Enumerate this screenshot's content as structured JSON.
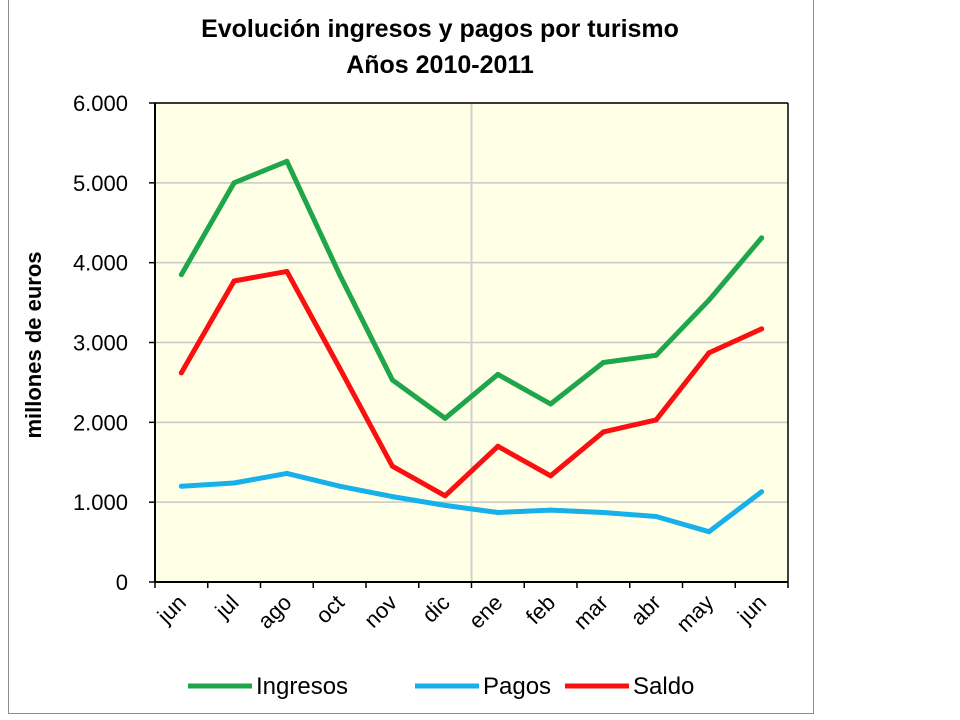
{
  "chart_data": {
    "type": "line",
    "title": "Evolución ingresos  y pagos por turismo",
    "subtitle": "Años 2010-2011",
    "ylabel": "millones de euros",
    "xlabel": "",
    "categories": [
      "jun",
      "jul",
      "ago",
      "oct",
      "nov",
      "dic",
      "ene",
      "feb",
      "mar",
      "abr",
      "may",
      "jun"
    ],
    "ylim": [
      0,
      6000
    ],
    "yticks": [
      0,
      1000,
      2000,
      3000,
      4000,
      5000,
      6000
    ],
    "ytick_labels": [
      "0",
      "1.000",
      "2.000",
      "3.000",
      "4.000",
      "5.000",
      "6.000"
    ],
    "grid": "horizontal",
    "plot_background": "#FFFFE5",
    "legend_position": "bottom",
    "series": [
      {
        "name": "Ingresos",
        "color": "#1FA54A",
        "values": [
          3850,
          5000,
          5270,
          3850,
          2530,
          2050,
          2600,
          2230,
          2750,
          2840,
          3530,
          4310
        ]
      },
      {
        "name": "Pagos",
        "color": "#17B0EB",
        "values": [
          1200,
          1240,
          1360,
          1200,
          1070,
          960,
          870,
          900,
          870,
          820,
          630,
          1130
        ]
      },
      {
        "name": "Saldo",
        "color": "#FA1010",
        "values": [
          2620,
          3770,
          3890,
          2680,
          1450,
          1080,
          1700,
          1330,
          1880,
          2030,
          2870,
          3170
        ]
      }
    ]
  }
}
